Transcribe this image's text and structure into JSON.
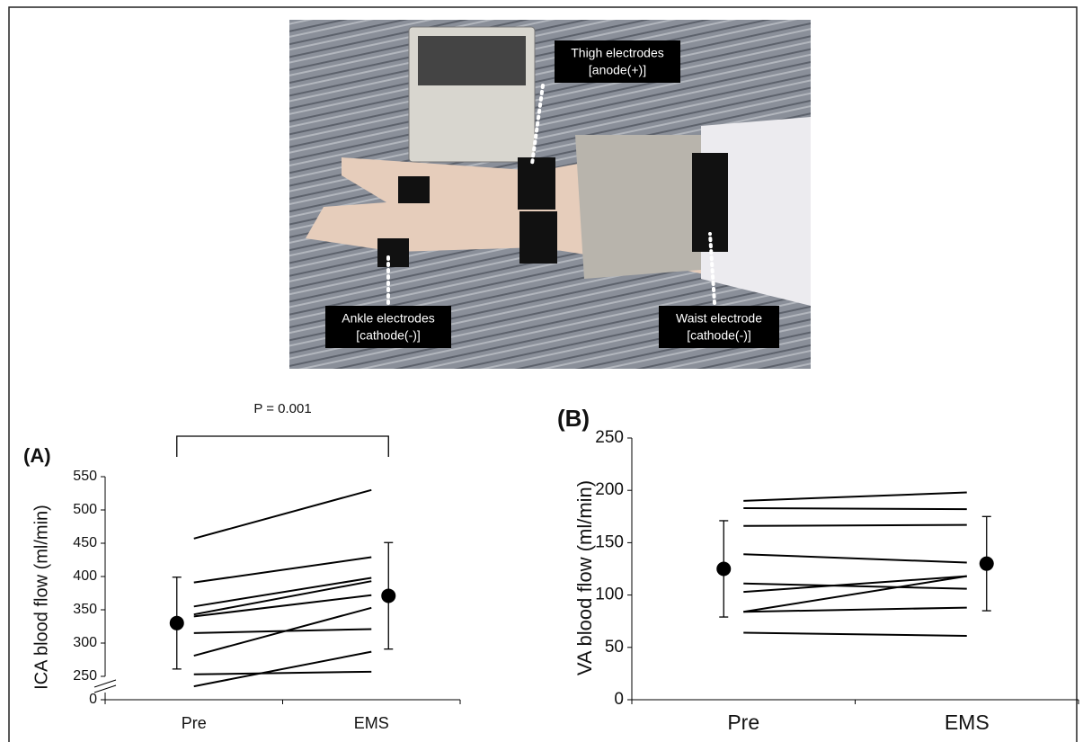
{
  "photo": {
    "labels": [
      {
        "lines": [
          "Thigh electrodes",
          "[anode(+)]"
        ]
      },
      {
        "lines": [
          "Ankle electrodes",
          "[cathode(-)]"
        ]
      },
      {
        "lines": [
          "Waist electrode",
          "[cathode(-)]"
        ]
      }
    ]
  },
  "chart_data": [
    {
      "type": "paired-line",
      "panel_label": "(A)",
      "y_label": "ICA  blood flow (ml/min)",
      "annotation": "P = 0.001",
      "categories": [
        "Pre",
        "EMS"
      ],
      "lines": [
        [
          457,
          530
        ],
        [
          391,
          429
        ],
        [
          355,
          398
        ],
        [
          343,
          393
        ],
        [
          340,
          372
        ],
        [
          315,
          321
        ],
        [
          281,
          353
        ],
        [
          253,
          257
        ],
        [
          235,
          287
        ]
      ],
      "mean": {
        "values": [
          330,
          371
        ],
        "errors": [
          69,
          80
        ]
      },
      "ylim": [
        0,
        550
      ],
      "ybreak": [
        0,
        250
      ],
      "yticks": [
        0,
        250,
        300,
        350,
        400,
        450,
        500,
        550
      ]
    },
    {
      "type": "paired-line",
      "panel_label": "(B)",
      "y_label": "VA  blood flow (ml/min)",
      "categories": [
        "Pre",
        "EMS"
      ],
      "lines": [
        [
          190,
          198
        ],
        [
          183,
          182
        ],
        [
          166,
          167
        ],
        [
          139,
          131
        ],
        [
          111,
          106
        ],
        [
          103,
          118
        ],
        [
          84,
          118
        ],
        [
          84,
          88
        ],
        [
          64,
          61
        ]
      ],
      "mean": {
        "values": [
          125,
          130
        ],
        "errors": [
          46,
          45
        ]
      },
      "ylim": [
        0,
        250
      ],
      "yticks": [
        0,
        50,
        100,
        150,
        200,
        250
      ]
    }
  ]
}
